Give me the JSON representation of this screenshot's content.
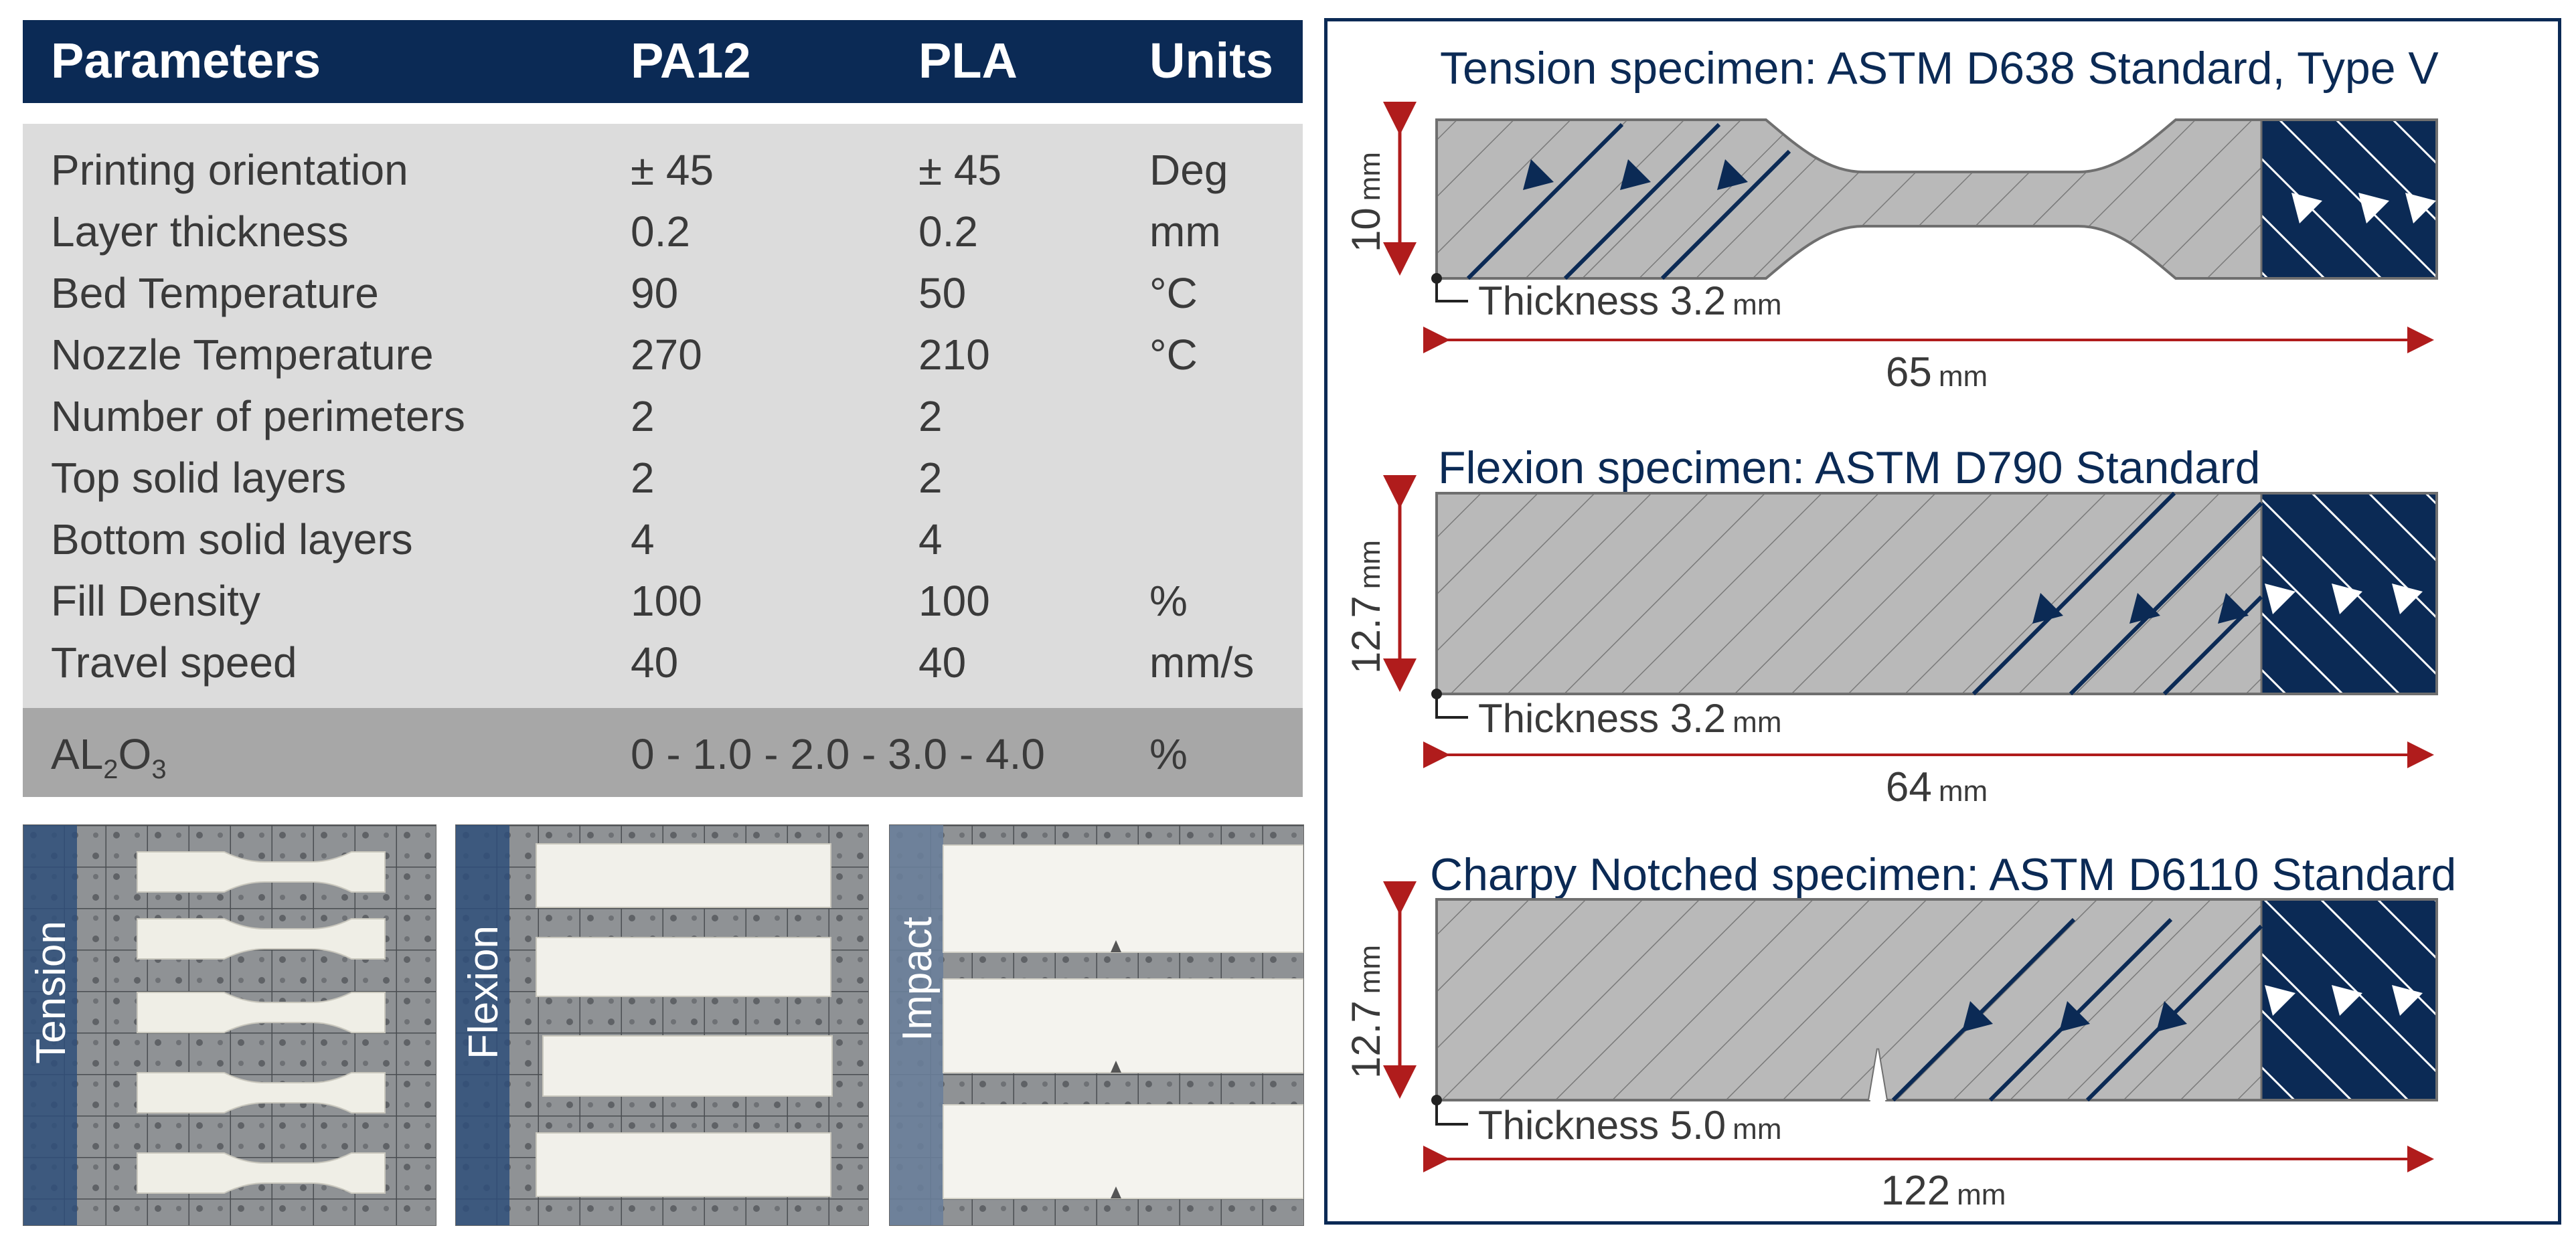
{
  "table": {
    "headers": [
      "Parameters",
      "PA12",
      "PLA",
      "Units"
    ],
    "rows": [
      {
        "param": "Printing orientation",
        "pa12": "± 45",
        "pla": "± 45",
        "unit": "Deg"
      },
      {
        "param": "Layer thickness",
        "pa12": "0.2",
        "pla": "0.2",
        "unit": "mm"
      },
      {
        "param": "Bed Temperature",
        "pa12": "90",
        "pla": "50",
        "unit": "°C"
      },
      {
        "param": "Nozzle Temperature",
        "pa12": "270",
        "pla": "210",
        "unit": "°C"
      },
      {
        "param": "Number of perimeters",
        "pa12": "2",
        "pla": "2",
        "unit": ""
      },
      {
        "param": "Top solid layers",
        "pa12": "2",
        "pla": "2",
        "unit": ""
      },
      {
        "param": "Bottom solid layers",
        "pa12": "4",
        "pla": "4",
        "unit": ""
      },
      {
        "param": "Fill Density",
        "pa12": "100",
        "pla": "100",
        "unit": "%"
      },
      {
        "param": "Travel speed",
        "pa12": "40",
        "pla": "40",
        "unit": "mm/s"
      }
    ],
    "additive": {
      "label_main": "AL",
      "label_sub": "2",
      "label_o": "O",
      "label_sub2": "3",
      "values": "0 - 1.0 - 2.0 - 3.0 - 4.0",
      "unit": "%"
    }
  },
  "photos": [
    {
      "label": "Tension"
    },
    {
      "label": "Flexion"
    },
    {
      "label": "Impact"
    }
  ],
  "specimens": [
    {
      "title": "Tension specimen: ASTM D638 Standard, Type V",
      "height_value": "10",
      "height_unit": "mm",
      "thickness_label": "Thickness 3.2",
      "thickness_unit": "mm",
      "length_value": "65",
      "length_unit": "mm"
    },
    {
      "title": "Flexion specimen: ASTM D790 Standard",
      "height_value": "12.7",
      "height_unit": "mm",
      "thickness_label": "Thickness 3.2",
      "thickness_unit": "mm",
      "length_value": "64",
      "length_unit": "mm"
    },
    {
      "title": "Charpy Notched specimen: ASTM D6110 Standard",
      "height_value": "12.7",
      "height_unit": "mm",
      "thickness_label": "Thickness 5.0",
      "thickness_unit": "mm",
      "length_value": "122",
      "length_unit": "mm"
    }
  ],
  "colors": {
    "navy": "#0b2a55",
    "red": "#b01c1c",
    "grey_fill": "#b9b9b9",
    "table_bg": "#dcdcdc"
  }
}
